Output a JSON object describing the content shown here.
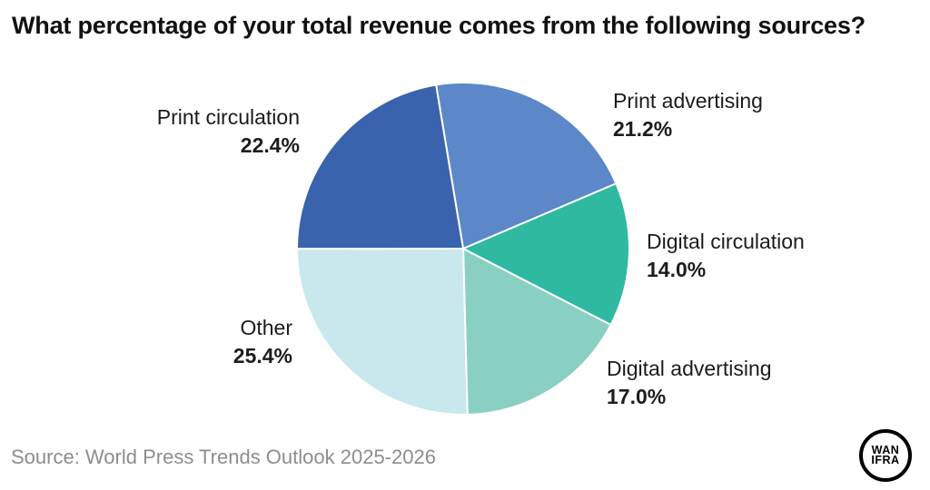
{
  "title": "What percentage of your total revenue comes from the following sources?",
  "source": "Source: World Press Trends Outlook 2025-2026",
  "logo": {
    "line1": "WAN",
    "line2": "IFRA"
  },
  "chart_data": {
    "type": "pie",
    "title": "What percentage of your total revenue comes from the following sources?",
    "legend_position": "labels-around-pie",
    "start_angle_deg": -9.4,
    "direction": "clockwise",
    "slices": [
      {
        "label": "Print advertising",
        "value": 21.2,
        "display": "21.2%",
        "color": "#5c87c9"
      },
      {
        "label": "Digital circulation",
        "value": 14.0,
        "display": "14.0%",
        "color": "#2fb9a1"
      },
      {
        "label": "Digital advertising",
        "value": 17.0,
        "display": "17.0%",
        "color": "#8ad0c2"
      },
      {
        "label": "Other",
        "value": 25.4,
        "display": "25.4%",
        "color": "#c8e8ed"
      },
      {
        "label": "Print circulation",
        "value": 22.4,
        "display": "22.4%",
        "color": "#3a63ae"
      }
    ]
  }
}
